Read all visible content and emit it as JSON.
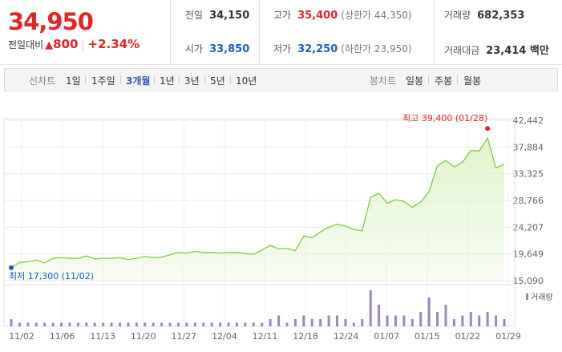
{
  "quote": {
    "price": "34,950",
    "change_label": "전일대비",
    "change_arrow": "▲",
    "change_value": "800",
    "change_pct": "+2.34%"
  },
  "info": {
    "prev_close_label": "전일",
    "prev_close": "34,150",
    "open_label": "시가",
    "open": "33,850",
    "high_label": "고가",
    "high": "35,400",
    "upper_limit": "(상한가 44,350)",
    "low_label": "저가",
    "low": "32,250",
    "lower_limit": "(하한가 23,950)",
    "volume_label": "거래량",
    "volume": "682,353",
    "amount_label": "거래대금",
    "amount": "23,414 백만"
  },
  "tabs": {
    "line_label": "선차트",
    "line_periods": [
      "1일",
      "1주일",
      "3개월",
      "1년",
      "3년",
      "5년",
      "10년"
    ],
    "active_period": "3개월",
    "candle_label": "봉차트",
    "candle_periods": [
      "일봉",
      "주봉",
      "월봉"
    ]
  },
  "colors": {
    "up": "#e42525",
    "down": "#1a5fc6",
    "line": "#7dcf3c",
    "fill": "#dff3c9",
    "volume_bar": "#9a85c2"
  },
  "chart_data": {
    "type": "area",
    "y_ticks": [
      "42,442",
      "37,884",
      "33,325",
      "28,766",
      "24,207",
      "19,649",
      "15,090"
    ],
    "ylim": [
      15090,
      42442
    ],
    "x_ticks": [
      "11/02",
      "11/06",
      "11/13",
      "11/20",
      "11/27",
      "12/04",
      "12/11",
      "12/18",
      "12/24",
      "01/07",
      "01/15",
      "01/22",
      "01/29"
    ],
    "high_annotation": "최고 39,400 (01/28)",
    "low_annotation": "최저 17,300 (11/02)",
    "high_index": 57,
    "low_index": 0,
    "volume_legend": "거래량",
    "grid": true,
    "values": [
      17300,
      18200,
      18300,
      18600,
      18100,
      18900,
      19000,
      18900,
      18900,
      19300,
      18800,
      18900,
      18900,
      19000,
      18700,
      18900,
      19200,
      19000,
      19100,
      19500,
      19900,
      19800,
      20100,
      19900,
      19900,
      19800,
      19900,
      19900,
      19700,
      19600,
      20300,
      21100,
      20500,
      20600,
      20200,
      22700,
      22400,
      23400,
      24200,
      24700,
      24400,
      23800,
      23600,
      29300,
      30000,
      28300,
      28900,
      28600,
      27600,
      28500,
      30300,
      34700,
      35600,
      34500,
      35300,
      37300,
      37200,
      39400,
      34300,
      34950
    ],
    "volumes": [
      2,
      1,
      1,
      1,
      1,
      1,
      1,
      1,
      1,
      1,
      1,
      1,
      1,
      1,
      1,
      1,
      1,
      1,
      1,
      1,
      1,
      1,
      1,
      1,
      1,
      1,
      1,
      1,
      1,
      1,
      1,
      2,
      3,
      1,
      2,
      3,
      2,
      2,
      3,
      3,
      2,
      1,
      2,
      10,
      6,
      3,
      3,
      3,
      2,
      4,
      8,
      4,
      6,
      2,
      3,
      4,
      3,
      4,
      3,
      2
    ]
  }
}
